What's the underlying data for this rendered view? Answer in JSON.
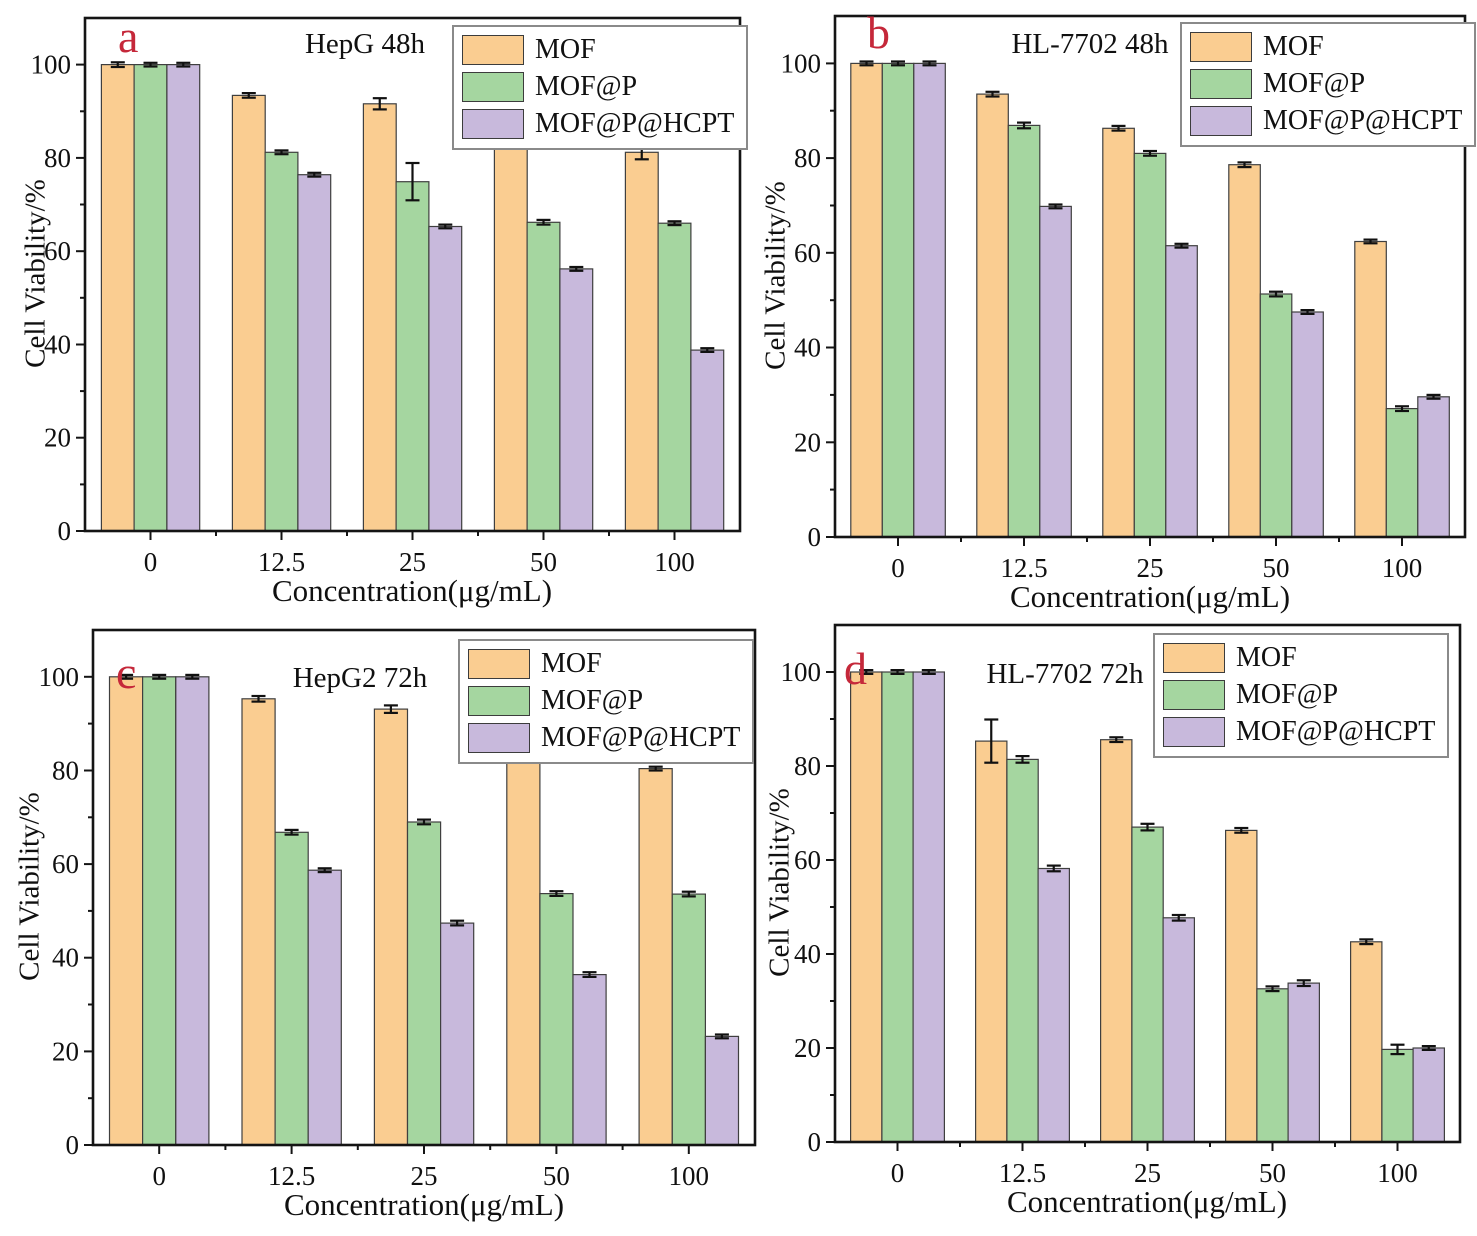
{
  "figure": {
    "legend_labels": [
      "MOF",
      "MOF@P",
      "MOF@P@HCPT"
    ],
    "colors": {
      "mof": "#FACD91",
      "mof_p": "#A5D6A0",
      "mof_p_hcpt": "#C8B9DC",
      "bar_border": "#3f3f3f",
      "error_bar": "#111111",
      "axis": "#141414",
      "panel_letter_red": "#C5283A"
    }
  },
  "chart_data": [
    {
      "type": "bar",
      "panel_letter": "a",
      "title": "HepG 48h",
      "xlabel": "Concentration(μg/mL)",
      "ylabel": "Cell Viability/%",
      "categories": [
        "0",
        "12.5",
        "25",
        "50",
        "100"
      ],
      "ylim": [
        0,
        110
      ],
      "yticks": [
        0,
        20,
        40,
        60,
        80,
        100
      ],
      "legend_position": "top-right",
      "grid": false,
      "series": [
        {
          "name": "MOF",
          "values": [
            100,
            93.4,
            91.6,
            83.7,
            81.2
          ],
          "errors": [
            0.5,
            0.5,
            1.2,
            0.6,
            1.5
          ]
        },
        {
          "name": "MOF@P",
          "values": [
            100,
            81.2,
            74.9,
            66.2,
            66.0
          ],
          "errors": [
            0.4,
            0.4,
            4.0,
            0.5,
            0.4
          ]
        },
        {
          "name": "MOF@P@HCPT",
          "values": [
            100,
            76.4,
            65.3,
            56.2,
            38.8
          ],
          "errors": [
            0.4,
            0.4,
            0.4,
            0.4,
            0.4
          ]
        }
      ]
    },
    {
      "type": "bar",
      "panel_letter": "b",
      "title": "HL-7702 48h",
      "xlabel": "Concentration(μg/mL)",
      "ylabel": "Cell Viability/%",
      "categories": [
        "0",
        "12.5",
        "25",
        "50",
        "100"
      ],
      "ylim": [
        0,
        110
      ],
      "yticks": [
        0,
        20,
        40,
        60,
        80,
        100
      ],
      "legend_position": "top-right",
      "grid": false,
      "series": [
        {
          "name": "MOF",
          "values": [
            100,
            93.5,
            86.3,
            78.6,
            62.4
          ],
          "errors": [
            0.4,
            0.5,
            0.5,
            0.5,
            0.4
          ]
        },
        {
          "name": "MOF@P",
          "values": [
            100,
            86.9,
            81.0,
            51.3,
            27.1
          ],
          "errors": [
            0.4,
            0.6,
            0.5,
            0.5,
            0.5
          ]
        },
        {
          "name": "MOF@P@HCPT",
          "values": [
            100,
            69.8,
            61.5,
            47.5,
            29.6
          ],
          "errors": [
            0.4,
            0.4,
            0.4,
            0.4,
            0.4
          ]
        }
      ]
    },
    {
      "type": "bar",
      "panel_letter": "c",
      "title": "HepG2 72h",
      "xlabel": "Concentration(μg/mL)",
      "ylabel": "Cell Viability/%",
      "categories": [
        "0",
        "12.5",
        "25",
        "50",
        "100"
      ],
      "ylim": [
        0,
        110
      ],
      "yticks": [
        0,
        20,
        40,
        60,
        80,
        100
      ],
      "legend_position": "top-right",
      "grid": false,
      "series": [
        {
          "name": "MOF",
          "values": [
            100,
            95.3,
            93.1,
            86.0,
            80.4
          ],
          "errors": [
            0.4,
            0.6,
            0.8,
            0.6,
            0.4
          ]
        },
        {
          "name": "MOF@P",
          "values": [
            100,
            66.8,
            69.0,
            53.7,
            53.6
          ],
          "errors": [
            0.4,
            0.5,
            0.5,
            0.5,
            0.5
          ]
        },
        {
          "name": "MOF@P@HCPT",
          "values": [
            100,
            58.7,
            47.4,
            36.4,
            23.2
          ],
          "errors": [
            0.4,
            0.4,
            0.5,
            0.5,
            0.4
          ]
        }
      ]
    },
    {
      "type": "bar",
      "panel_letter": "d",
      "title": "HL-7702 72h",
      "xlabel": "Concentration(μg/mL)",
      "ylabel": "Cell Viability/%",
      "categories": [
        "0",
        "12.5",
        "25",
        "50",
        "100"
      ],
      "ylim": [
        0,
        110
      ],
      "yticks": [
        0,
        20,
        40,
        60,
        80,
        100
      ],
      "legend_position": "top-right",
      "grid": false,
      "series": [
        {
          "name": "MOF",
          "values": [
            100,
            85.3,
            85.6,
            66.3,
            42.6
          ],
          "errors": [
            0.4,
            4.6,
            0.5,
            0.5,
            0.5
          ]
        },
        {
          "name": "MOF@P",
          "values": [
            100,
            81.4,
            67.0,
            32.6,
            19.7
          ],
          "errors": [
            0.4,
            0.7,
            0.7,
            0.5,
            1.0
          ]
        },
        {
          "name": "MOF@P@HCPT",
          "values": [
            100,
            58.2,
            47.7,
            33.8,
            20.0
          ],
          "errors": [
            0.4,
            0.6,
            0.6,
            0.6,
            0.4
          ]
        }
      ]
    }
  ]
}
